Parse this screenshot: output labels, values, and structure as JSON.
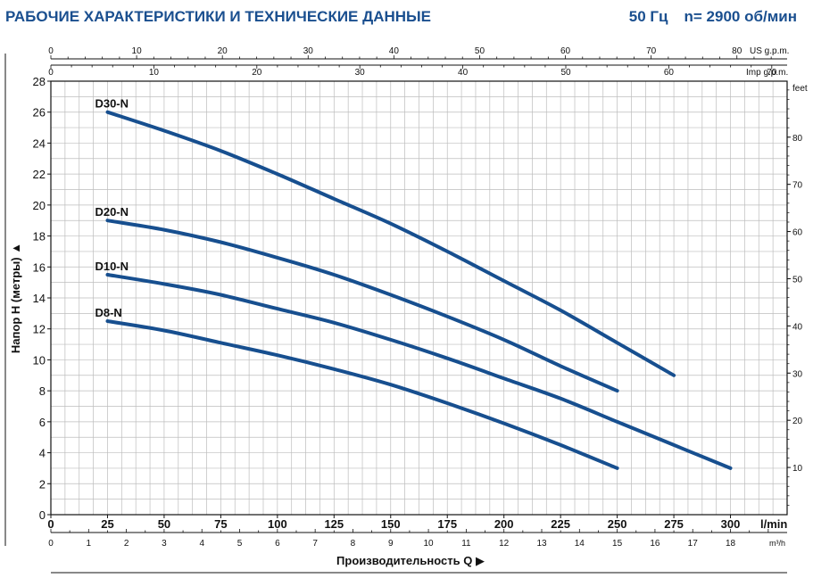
{
  "header": {
    "title": "РАБОЧИЕ ХАРАКТЕРИСТИКИ И ТЕХНИЧЕСКИЕ ДАННЫЕ",
    "frequency": "50 Гц",
    "speed": "n= 2900 об/мин"
  },
  "colors": {
    "title": "#1a4f8f",
    "curve": "#174f8f",
    "grid": "#bdbdbd",
    "axis": "#111111"
  },
  "chart_data": {
    "type": "line",
    "ylabel": "Напор H (метры)",
    "xlabel": "Производительность Q",
    "x_unit": "l/min",
    "secondary_y_unit": "feet",
    "top_axis_us_unit": "US g.p.m.",
    "top_axis_imp_unit": "Imp g.p.m.",
    "bottom_axis_m3h_unit": "m³/h",
    "xlim": [
      0,
      325
    ],
    "ylim": [
      0,
      28
    ],
    "x_ticks": [
      0,
      25,
      50,
      75,
      100,
      125,
      150,
      175,
      200,
      225,
      250,
      275,
      300
    ],
    "y_ticks": [
      0,
      2,
      4,
      6,
      8,
      10,
      12,
      14,
      16,
      18,
      20,
      22,
      24,
      26,
      28
    ],
    "feet_ticks": [
      10,
      20,
      30,
      40,
      50,
      60,
      70,
      80
    ],
    "us_gpm_ticks": [
      0,
      10,
      20,
      30,
      40,
      50,
      60,
      70,
      80
    ],
    "imp_gpm_ticks": [
      0,
      10,
      20,
      30,
      40,
      50,
      60,
      70
    ],
    "m3h_ticks": [
      0,
      1,
      2,
      3,
      4,
      5,
      6,
      7,
      8,
      9,
      10,
      11,
      12,
      13,
      14,
      15,
      16,
      17,
      18
    ],
    "grid": true,
    "series": [
      {
        "name": "D30-N",
        "x": [
          25,
          50,
          75,
          100,
          125,
          150,
          175,
          200,
          225,
          250,
          275
        ],
        "y": [
          26,
          24.8,
          23.5,
          22,
          20.4,
          18.8,
          17,
          15.1,
          13.2,
          11.1,
          9
        ]
      },
      {
        "name": "D20-N",
        "x": [
          25,
          50,
          75,
          100,
          125,
          150,
          175,
          200,
          225,
          250
        ],
        "y": [
          19,
          18.4,
          17.6,
          16.6,
          15.5,
          14.2,
          12.8,
          11.3,
          9.6,
          8
        ]
      },
      {
        "name": "D10-N",
        "x": [
          25,
          50,
          75,
          100,
          125,
          150,
          175,
          200,
          225,
          250,
          275,
          300
        ],
        "y": [
          15.5,
          14.9,
          14.2,
          13.3,
          12.4,
          11.3,
          10.1,
          8.8,
          7.5,
          6,
          4.5,
          3
        ]
      },
      {
        "name": "D8-N",
        "x": [
          25,
          50,
          75,
          100,
          125,
          150,
          175,
          200,
          225,
          250
        ],
        "y": [
          12.5,
          11.9,
          11.1,
          10.3,
          9.4,
          8.4,
          7.2,
          5.9,
          4.5,
          3
        ]
      }
    ]
  }
}
